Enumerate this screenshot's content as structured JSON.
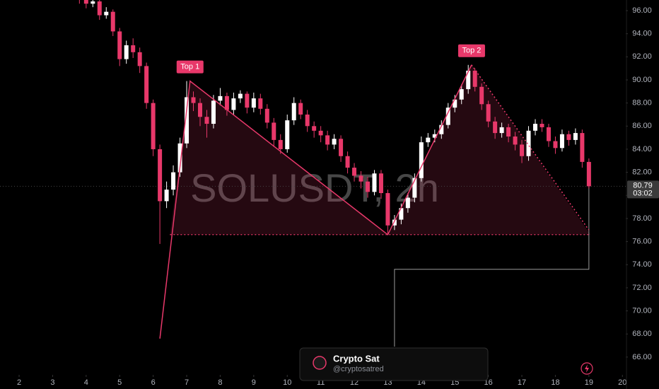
{
  "chart_data": {
    "type": "candlestick",
    "watermark": "SOLUSDT, 2h",
    "up_color": "#ffffff",
    "down_color": "#e8386a",
    "x": [
      3.8,
      4.0,
      4.2,
      4.4,
      4.6,
      4.8,
      5.0,
      5.2,
      5.4,
      5.6,
      5.8,
      6.0,
      6.2,
      6.4,
      6.6,
      6.8,
      7.0,
      7.2,
      7.4,
      7.6,
      7.8,
      8.0,
      8.2,
      8.4,
      8.6,
      8.8,
      9.0,
      9.2,
      9.4,
      9.6,
      9.8,
      10.0,
      10.2,
      10.4,
      10.6,
      10.8,
      11.0,
      11.2,
      11.4,
      11.6,
      11.8,
      12.0,
      12.2,
      12.4,
      12.6,
      12.8,
      13.0,
      13.2,
      13.4,
      13.6,
      13.8,
      14.0,
      14.2,
      14.4,
      14.6,
      14.8,
      15.0,
      15.2,
      15.4,
      15.6,
      15.8,
      16.0,
      16.2,
      16.4,
      16.6,
      16.8,
      17.0,
      17.2,
      17.4,
      17.6,
      17.8,
      18.0,
      18.2,
      18.4,
      18.6,
      18.8,
      19.0
    ],
    "open": [
      97.4,
      97.0,
      96.6,
      96.8,
      95.6,
      95.9,
      94.2,
      91.8,
      93.0,
      92.4,
      91.2,
      88.0,
      84.0,
      79.5,
      80.5,
      82.0,
      84.5,
      88.5,
      88.0,
      86.8,
      86.2,
      88.2,
      88.6,
      87.4,
      88.4,
      88.8,
      87.6,
      88.4,
      87.5,
      86.3,
      84.8,
      84.0,
      86.5,
      88.0,
      87.0,
      86.0,
      85.6,
      85.2,
      84.4,
      84.9,
      83.4,
      82.4,
      81.7,
      81.2,
      80.3,
      81.9,
      80.2,
      77.4,
      77.9,
      78.9,
      79.8,
      81.5,
      84.6,
      85.0,
      85.3,
      86.1,
      87.6,
      88.3,
      89.2,
      90.8,
      89.4,
      87.9,
      86.4,
      85.4,
      85.9,
      85.1,
      84.4,
      83.4,
      85.6,
      86.2,
      85.9,
      84.7,
      84.1,
      85.3,
      84.8,
      85.4,
      82.9
    ],
    "high": [
      97.8,
      97.3,
      97.1,
      97.0,
      96.3,
      96.1,
      94.5,
      93.4,
      93.6,
      92.8,
      91.5,
      88.3,
      84.4,
      81.2,
      82.6,
      85.0,
      89.9,
      89.0,
      88.4,
      87.4,
      88.7,
      89.3,
      88.9,
      88.9,
      89.1,
      89.0,
      88.9,
      88.8,
      87.9,
      86.7,
      85.3,
      87.0,
      88.5,
      88.3,
      87.4,
      86.4,
      86.0,
      85.6,
      85.3,
      85.2,
      83.8,
      82.8,
      82.1,
      81.6,
      82.2,
      82.2,
      80.5,
      78.3,
      79.3,
      80.2,
      81.9,
      85.1,
      85.4,
      85.7,
      86.5,
      88.0,
      88.7,
      89.6,
      91.3,
      91.0,
      89.7,
      88.2,
      86.8,
      86.3,
      86.2,
      85.5,
      84.8,
      86.0,
      86.6,
      86.6,
      86.2,
      85.1,
      85.7,
      85.6,
      85.8,
      85.7,
      83.2
    ],
    "low": [
      96.6,
      96.2,
      96.3,
      95.2,
      95.3,
      93.8,
      91.2,
      91.4,
      91.9,
      90.6,
      87.5,
      83.4,
      75.8,
      78.9,
      80.0,
      81.6,
      84.1,
      87.3,
      86.0,
      85.0,
      85.8,
      87.8,
      86.9,
      87.0,
      88.0,
      87.1,
      87.2,
      87.0,
      85.8,
      84.2,
      83.6,
      83.7,
      86.1,
      86.6,
      85.5,
      85.0,
      84.6,
      83.9,
      84.0,
      82.9,
      81.9,
      81.2,
      80.6,
      79.8,
      80.0,
      79.7,
      76.6,
      77.0,
      77.5,
      78.5,
      79.4,
      81.2,
      84.2,
      84.6,
      84.9,
      85.8,
      87.2,
      87.9,
      88.8,
      89.0,
      87.4,
      85.9,
      84.9,
      85.0,
      84.6,
      83.9,
      82.8,
      83.0,
      85.2,
      85.5,
      84.2,
      83.6,
      83.8,
      84.3,
      84.4,
      82.4,
      80.6
    ],
    "close": [
      97.0,
      96.6,
      96.8,
      95.6,
      95.9,
      94.2,
      91.8,
      93.0,
      92.4,
      91.2,
      88.0,
      84.0,
      79.5,
      80.5,
      82.0,
      84.5,
      88.5,
      88.0,
      86.8,
      86.2,
      88.2,
      88.6,
      87.4,
      88.4,
      88.8,
      87.6,
      88.4,
      87.5,
      86.3,
      84.8,
      84.0,
      86.5,
      88.0,
      87.0,
      86.0,
      85.6,
      85.2,
      84.4,
      84.9,
      83.4,
      82.4,
      81.7,
      81.2,
      80.3,
      81.9,
      80.2,
      77.4,
      77.9,
      78.9,
      79.8,
      81.5,
      84.6,
      85.0,
      85.3,
      86.1,
      87.6,
      88.3,
      89.2,
      90.8,
      89.4,
      87.9,
      86.4,
      85.4,
      85.9,
      85.1,
      84.4,
      83.4,
      85.6,
      86.2,
      85.9,
      84.7,
      84.1,
      85.3,
      84.8,
      85.4,
      82.9,
      80.79
    ],
    "xlim": [
      1.43,
      20.1
    ],
    "xticks": [
      2,
      3,
      4,
      5,
      6,
      7,
      8,
      9,
      10,
      11,
      12,
      13,
      14,
      15,
      16,
      17,
      18,
      19,
      20
    ],
    "ylim": [
      64.46,
      96.92
    ],
    "yticks": [
      {
        "value": 66,
        "label": "66.00"
      },
      {
        "value": 68,
        "label": "68.00"
      },
      {
        "value": 70,
        "label": "70.00"
      },
      {
        "value": 72,
        "label": "72.00"
      },
      {
        "value": 74,
        "label": "74.00"
      },
      {
        "value": 76,
        "label": "76.00"
      },
      {
        "value": 78,
        "label": "78.00"
      },
      {
        "value": 80,
        "label": "80.00"
      },
      {
        "value": 82,
        "label": "82.00"
      },
      {
        "value": 84,
        "label": "84.00"
      },
      {
        "value": 86,
        "label": "86.00"
      },
      {
        "value": 88,
        "label": "88.00"
      },
      {
        "value": 90,
        "label": "90.00"
      },
      {
        "value": 92,
        "label": "92.00"
      },
      {
        "value": 94,
        "label": "94.00"
      },
      {
        "value": 96,
        "label": "96.00"
      }
    ],
    "pattern": {
      "x": [
        6.2,
        7.1,
        13.0,
        15.5,
        19.0
      ],
      "y": [
        67.6,
        89.9,
        76.6,
        91.3,
        77.0
      ]
    },
    "neckline": 76.6,
    "neckline_x": [
      6.5,
      19.05
    ],
    "target_line": {
      "x": [
        13.2,
        13.2,
        19.0,
        19.0
      ],
      "y": [
        66.9,
        73.6,
        73.6,
        80.79
      ]
    },
    "annotations": [
      {
        "text": "Top 1",
        "x": 7.1,
        "y": 89.9
      },
      {
        "text": "Top 2",
        "x": 15.5,
        "y": 91.3
      }
    ],
    "last_price": 80.79,
    "countdown": "03:02"
  },
  "card": {
    "name": "Crypto Sat",
    "handle": "@cryptosatred"
  }
}
